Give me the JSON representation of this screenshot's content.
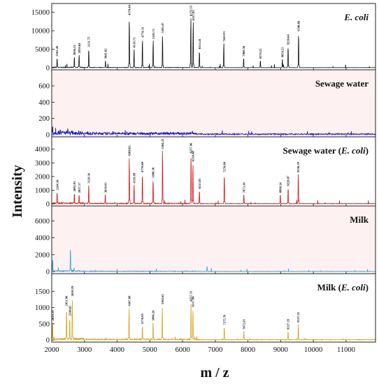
{
  "figure": {
    "ylabel": "Intensity",
    "xlabel": "m / z",
    "x_ticks": [
      "2000",
      "3000",
      "4000",
      "5000",
      "6000",
      "7000",
      "8000",
      "9000",
      "10000",
      "11000"
    ]
  },
  "chart_data": [
    {
      "type": "line",
      "title_main": "E. coli",
      "title_suffix": "",
      "title_italic": true,
      "background": "#ffffff",
      "line_color": "#111111",
      "xlim": [
        2000,
        11900
      ],
      "ylim": [
        0,
        17000
      ],
      "y_ticks": [
        0,
        5000,
        10000,
        15000
      ],
      "noise": 120,
      "peaks": [
        {
          "x": 2163.26,
          "y": 2700,
          "label": "2163.26"
        },
        {
          "x": 2694.23,
          "y": 3000,
          "label": "2694.23"
        },
        {
          "x": 2839.64,
          "y": 3500,
          "label": "2839.64"
        },
        {
          "x": 3131.75,
          "y": 5200,
          "label": "3131.75"
        },
        {
          "x": 3641.82,
          "y": 2000,
          "label": "3641.82"
        },
        {
          "x": 4370.64,
          "y": 13800,
          "label": "4370.64"
        },
        {
          "x": 4519.73,
          "y": 5000,
          "label": "4519.73"
        },
        {
          "x": 4774.33,
          "y": 7800,
          "label": "4774.33"
        },
        {
          "x": 5103.71,
          "y": 7400,
          "label": "5103.71"
        },
        {
          "x": 5385.47,
          "y": 9000,
          "label": "5385.47"
        },
        {
          "x": 6255.53,
          "y": 13600,
          "label": "6255.53"
        },
        {
          "x": 6327.81,
          "y": 12400,
          "label": "6327.81"
        },
        {
          "x": 6515.41,
          "y": 4700,
          "label": "6515.41"
        },
        {
          "x": 7263.93,
          "y": 6600,
          "label": "7263.93"
        },
        {
          "x": 7869.56,
          "y": 2700,
          "label": "7869.56"
        },
        {
          "x": 8379.22,
          "y": 2000,
          "label": "8379.22"
        },
        {
          "x": 9054.25,
          "y": 2400,
          "label": "9054.25"
        },
        {
          "x": 9226.64,
          "y": 5800,
          "label": "9226.64"
        },
        {
          "x": 9546.66,
          "y": 9500,
          "label": "9546.66"
        }
      ]
    },
    {
      "type": "line",
      "title_main": "Sewage water",
      "title_suffix": "",
      "title_italic": false,
      "background": "#fdf1f1",
      "line_color": "#1414d2",
      "xlim": [
        2000,
        11900
      ],
      "ylim": [
        0,
        780
      ],
      "y_ticks": [
        0,
        200,
        400,
        600
      ],
      "noise": 30,
      "peaks": [
        {
          "x": 2030,
          "y": 110,
          "label": ""
        },
        {
          "x": 2120,
          "y": 85,
          "label": ""
        },
        {
          "x": 2260,
          "y": 70,
          "label": ""
        },
        {
          "x": 2500,
          "y": 60,
          "label": ""
        },
        {
          "x": 3100,
          "y": 45,
          "label": ""
        },
        {
          "x": 4300,
          "y": 40,
          "label": ""
        },
        {
          "x": 6300,
          "y": 50,
          "label": ""
        }
      ]
    },
    {
      "type": "line",
      "title_main": "Sewage water (",
      "title_italic_part": "E. coli",
      "title_suffix": ")",
      "title_italic": false,
      "background": "#ffffff",
      "line_color": "#d21414",
      "xlim": [
        2000,
        11900
      ],
      "ylim": [
        0,
        4800
      ],
      "y_ticks": [
        0,
        1000,
        2000,
        3000,
        4000
      ],
      "noise": 60,
      "peaks": [
        {
          "x": 2164.16,
          "y": 900,
          "label": "2164.16"
        },
        {
          "x": 2692.93,
          "y": 800,
          "label": "2692.93"
        },
        {
          "x": 2837.17,
          "y": 700,
          "label": "2837.17"
        },
        {
          "x": 3129.16,
          "y": 1400,
          "label": "3129.16"
        },
        {
          "x": 3639.93,
          "y": 700,
          "label": "3639.93"
        },
        {
          "x": 4368.62,
          "y": 3400,
          "label": "4368.62"
        },
        {
          "x": 4519.99,
          "y": 1400,
          "label": "4519.99"
        },
        {
          "x": 4770.6,
          "y": 2200,
          "label": "4770.60"
        },
        {
          "x": 5098.3,
          "y": 1800,
          "label": "5098.30"
        },
        {
          "x": 5384.22,
          "y": 3900,
          "label": "5384.22"
        },
        {
          "x": 6257.96,
          "y": 3600,
          "label": "6257.96"
        },
        {
          "x": 6318.48,
          "y": 3000,
          "label": "6318.48"
        },
        {
          "x": 6515.81,
          "y": 1000,
          "label": "6515.81"
        },
        {
          "x": 7276.8,
          "y": 2200,
          "label": "7276.80"
        },
        {
          "x": 7873.38,
          "y": 700,
          "label": "7873.38"
        },
        {
          "x": 8990.34,
          "y": 700,
          "label": "8990.34"
        },
        {
          "x": 9228.87,
          "y": 1200,
          "label": "9228.87"
        },
        {
          "x": 9536.39,
          "y": 2200,
          "label": "9536.39"
        }
      ]
    },
    {
      "type": "line",
      "title_main": "Milk",
      "title_suffix": "",
      "title_italic": false,
      "background": "#fdf1f1",
      "line_color": "#2aa6d6",
      "xlim": [
        2000,
        11900
      ],
      "ylim": [
        0,
        7600
      ],
      "y_ticks": [
        0,
        2000,
        4000,
        6000
      ],
      "noise": 80,
      "peaks": [
        {
          "x": 2030,
          "y": 1500,
          "label": ""
        },
        {
          "x": 2200,
          "y": 500,
          "label": ""
        },
        {
          "x": 2570,
          "y": 2800,
          "label": ""
        },
        {
          "x": 4000,
          "y": 300,
          "label": ""
        },
        {
          "x": 5200,
          "y": 350,
          "label": ""
        },
        {
          "x": 6750,
          "y": 650,
          "label": ""
        }
      ]
    },
    {
      "type": "line",
      "title_main": "Milk (",
      "title_italic_part": "E. coli",
      "title_suffix": ")",
      "title_italic": false,
      "background": "#ffffff",
      "line_color": "#d9a21c",
      "xlim": [
        2000,
        11900
      ],
      "ylim": [
        0,
        2000
      ],
      "y_ticks": [
        0,
        500,
        1000,
        1500
      ],
      "noise": 40,
      "peaks": [
        {
          "x": 2029.29,
          "y": 550,
          "label": "2029.29"
        },
        {
          "x": 2451.96,
          "y": 1000,
          "label": "2451.96"
        },
        {
          "x": 2548.65,
          "y": 700,
          "label": "2548.65"
        },
        {
          "x": 2630.29,
          "y": 1300,
          "label": "2630.29"
        },
        {
          "x": 4367.08,
          "y": 1000,
          "label": "4367.08"
        },
        {
          "x": 4770.85,
          "y": 450,
          "label": "4770.85"
        },
        {
          "x": 5096.2,
          "y": 550,
          "label": "5096.20"
        },
        {
          "x": 5382.61,
          "y": 1050,
          "label": "5382.61"
        },
        {
          "x": 6257.33,
          "y": 1150,
          "label": "6257.33"
        },
        {
          "x": 6317.94,
          "y": 980,
          "label": "6317.94"
        },
        {
          "x": 7275.7,
          "y": 420,
          "label": "7275.70"
        },
        {
          "x": 7872.65,
          "y": 280,
          "label": "7872.65"
        },
        {
          "x": 9227.39,
          "y": 280,
          "label": "9227.39"
        },
        {
          "x": 9537.25,
          "y": 500,
          "label": "9537.25"
        }
      ]
    }
  ]
}
